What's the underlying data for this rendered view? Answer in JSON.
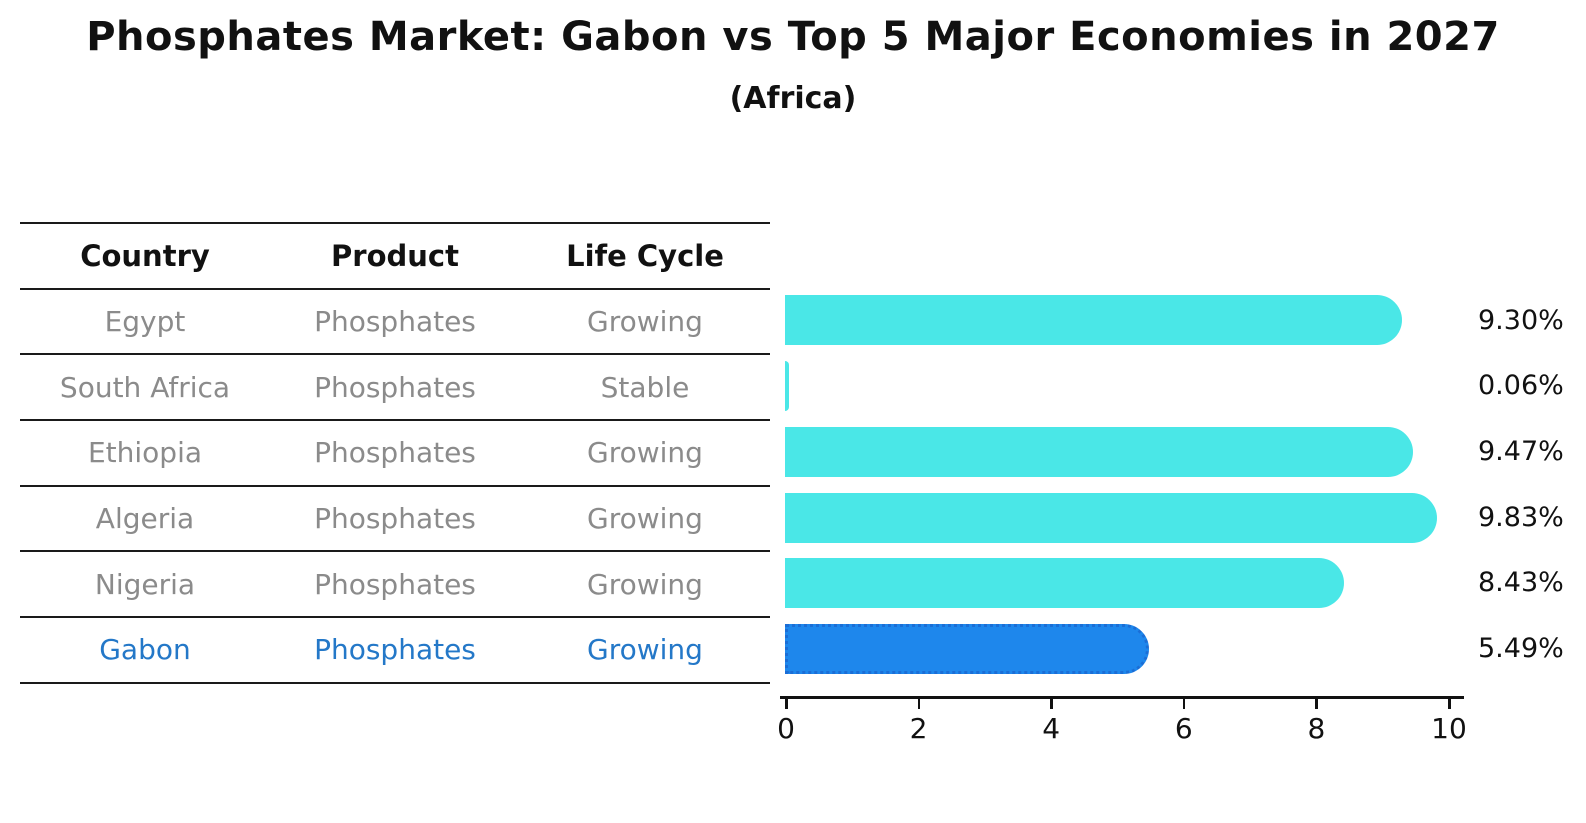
{
  "chart_data": {
    "type": "bar",
    "orientation": "horizontal",
    "title": "Phosphates Market: Gabon vs Top 5 Major Economies in 2027",
    "subtitle": "(Africa)",
    "categories": [
      "Egypt",
      "South Africa",
      "Ethiopia",
      "Algeria",
      "Nigeria",
      "Gabon"
    ],
    "values": [
      9.3,
      0.06,
      9.47,
      9.83,
      8.43,
      5.49
    ],
    "value_labels": [
      "9.30%",
      "0.06%",
      "9.47%",
      "9.83%",
      "8.43%",
      "5.49%"
    ],
    "xlabel": "",
    "ylabel": "",
    "xlim": [
      0,
      10
    ],
    "xticks": [
      "0",
      "2",
      "4",
      "6",
      "8",
      "10"
    ],
    "grid": "off",
    "legend": "none",
    "highlight_index": 5
  },
  "table": {
    "headers": [
      "Country",
      "Product",
      "Life Cycle"
    ],
    "rows": [
      {
        "country": "Egypt",
        "product": "Phosphates",
        "life_cycle": "Growing",
        "highlight": false
      },
      {
        "country": "South Africa",
        "product": "Phosphates",
        "life_cycle": "Stable",
        "highlight": false
      },
      {
        "country": "Ethiopia",
        "product": "Phosphates",
        "life_cycle": "Growing",
        "highlight": false
      },
      {
        "country": "Algeria",
        "product": "Phosphates",
        "life_cycle": "Growing",
        "highlight": false
      },
      {
        "country": "Nigeria",
        "product": "Phosphates",
        "life_cycle": "Growing",
        "highlight": false
      },
      {
        "country": "Gabon",
        "product": "Phosphates",
        "life_cycle": "Growing",
        "highlight": true
      }
    ]
  },
  "colors": {
    "bar": "#4AE7E7",
    "highlight_bar": "#1E87EC",
    "highlight_border": "#1B6ED6",
    "highlight_text": "#2478C8",
    "table_text": "#8B8B8B",
    "heading_text": "#111111",
    "line": "#1A1A1A"
  }
}
